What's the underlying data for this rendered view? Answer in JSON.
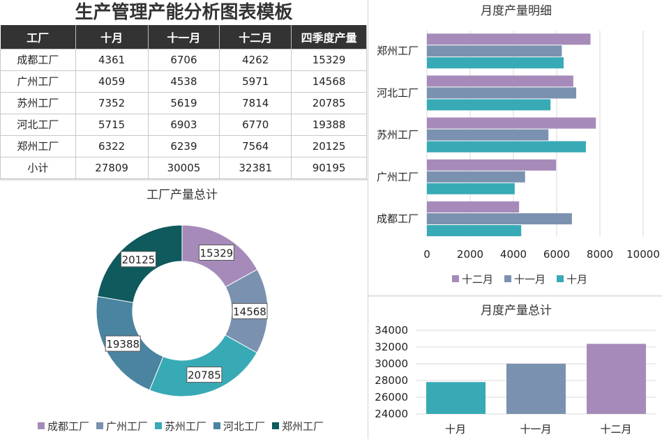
{
  "title": "生产管理产能分析图表模板",
  "table": {
    "headers": [
      "工厂",
      "十月",
      "十一月",
      "十二月",
      "四季度产量"
    ],
    "rows": [
      [
        "成都工厂",
        "4361",
        "6706",
        "4262",
        "15329"
      ],
      [
        "广州工厂",
        "4059",
        "4538",
        "5971",
        "14568"
      ],
      [
        "苏州工厂",
        "7352",
        "5619",
        "7814",
        "20785"
      ],
      [
        "河北工厂",
        "5715",
        "6903",
        "6770",
        "19388"
      ],
      [
        "郑州工厂",
        "6322",
        "6239",
        "7564",
        "20125"
      ],
      [
        "小计",
        "27809",
        "30005",
        "32381",
        "90195"
      ]
    ]
  },
  "chart_data": [
    {
      "type": "pie",
      "title": "工厂产量总计",
      "donut": true,
      "categories": [
        "成都工厂",
        "广州工厂",
        "苏州工厂",
        "河北工厂",
        "郑州工厂"
      ],
      "values": [
        15329,
        14568,
        20785,
        19388,
        20125
      ],
      "colors": [
        "#a68bba",
        "#7b91b0",
        "#38aab5",
        "#4a84a0",
        "#0e5a5c"
      ],
      "legend": "bottom"
    },
    {
      "type": "bar",
      "orientation": "horizontal",
      "title": "月度产量明细",
      "categories": [
        "成都工厂",
        "广州工厂",
        "苏州工厂",
        "河北工厂",
        "郑州工厂"
      ],
      "series": [
        {
          "name": "十二月",
          "values": [
            4262,
            5971,
            7814,
            6770,
            7564
          ],
          "color": "#a68bba"
        },
        {
          "name": "十一月",
          "values": [
            6706,
            4538,
            5619,
            6903,
            6239
          ],
          "color": "#7b91b0"
        },
        {
          "name": "十月",
          "values": [
            4361,
            4059,
            7352,
            5715,
            6322
          ],
          "color": "#38aab5"
        }
      ],
      "xlim": [
        0,
        10000
      ],
      "xticks": [
        "0",
        "2000",
        "4000",
        "6000",
        "8000",
        "10000"
      ],
      "grid": true,
      "legend": "bottom"
    },
    {
      "type": "bar",
      "title": "月度产量总计",
      "categories": [
        "十月",
        "十一月",
        "十二月"
      ],
      "values": [
        27809,
        30005,
        32381
      ],
      "colors": [
        "#38aab5",
        "#7b91b0",
        "#a68bba"
      ],
      "ylim": [
        24000,
        34000
      ],
      "yticks": [
        "24000",
        "26000",
        "28000",
        "30000",
        "32000",
        "34000"
      ],
      "grid": true
    }
  ]
}
